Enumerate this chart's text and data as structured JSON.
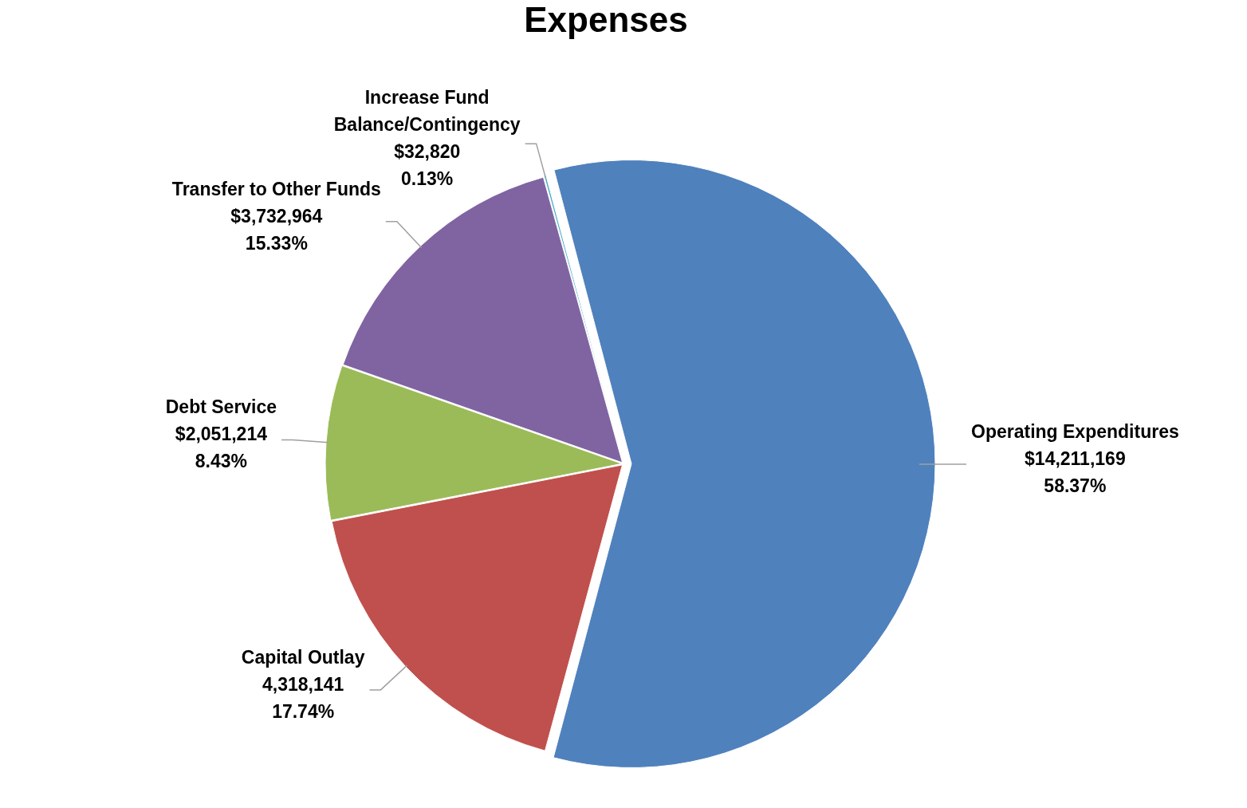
{
  "chart_data": {
    "type": "pie",
    "title": "Expenses",
    "categories": [
      "Operating Expenditures",
      "Capital Outlay",
      "Debt Service",
      "Transfer to Other Funds",
      "Increase Fund Balance/Contingency"
    ],
    "values": [
      14211169,
      4318141,
      2051214,
      3732964,
      32820
    ],
    "colors": [
      "#4f81bd",
      "#c0504d",
      "#9bbb59",
      "#8064a2",
      "#4bacc6"
    ],
    "value_labels": [
      "$14,211,169\n58.37%",
      "4,318,141\n17.74%",
      "$2,051,214\n8.43%",
      "$3,732,964\n15.33%",
      "$32,820\n0.13%"
    ],
    "legend": false
  }
}
